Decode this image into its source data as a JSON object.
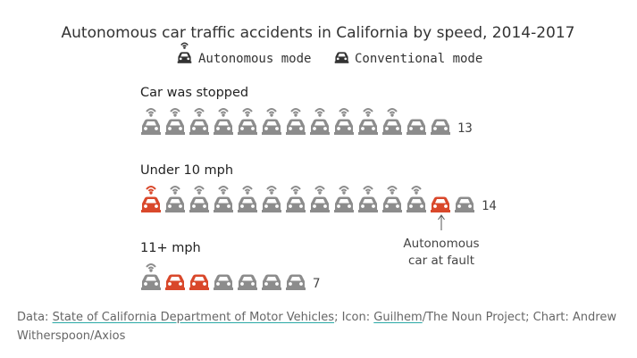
{
  "colors": {
    "autonomous_at_fault": "#d9482b",
    "default": "#8c8c8c",
    "text": "#333333",
    "link_underline": "#2aa8a6"
  },
  "chart_data": {
    "type": "pictogram",
    "title": "Autonomous car traffic accidents in California by speed, 2014-2017",
    "legend": [
      {
        "name": "Autonomous mode",
        "icon": "car-with-antenna-icon"
      },
      {
        "name": "Conventional mode",
        "icon": "car-icon"
      }
    ],
    "groups": [
      {
        "label": "Car was stopped",
        "total": 13,
        "total_label": "13",
        "autonomous": [
          true,
          true,
          true,
          true,
          true,
          true,
          true,
          true,
          true,
          true,
          true,
          false,
          false
        ],
        "at_fault": [
          false,
          false,
          false,
          false,
          false,
          false,
          false,
          false,
          false,
          false,
          false,
          false,
          false
        ]
      },
      {
        "label": "Under 10 mph",
        "total": 14,
        "total_label": "14",
        "autonomous": [
          true,
          true,
          true,
          true,
          true,
          true,
          true,
          true,
          true,
          true,
          true,
          true,
          false,
          false
        ],
        "at_fault": [
          true,
          false,
          false,
          false,
          false,
          false,
          false,
          false,
          false,
          false,
          false,
          false,
          true,
          false
        ]
      },
      {
        "label": "11+ mph",
        "total": 7,
        "total_label": "7",
        "autonomous": [
          true,
          false,
          false,
          false,
          false,
          false,
          false
        ],
        "at_fault": [
          false,
          true,
          true,
          false,
          false,
          false,
          false
        ]
      }
    ],
    "annotation": {
      "lines": [
        "Autonomous",
        "car at fault"
      ]
    }
  },
  "footer": {
    "data_prefix": "Data: ",
    "data_source": "State of California Department of Motor Vehicles",
    "icon_prefix": "; Icon: ",
    "icon_author": "Guilhem",
    "icon_suffix": "/The Noun Project; Chart: Andrew Witherspoon/Axios"
  }
}
